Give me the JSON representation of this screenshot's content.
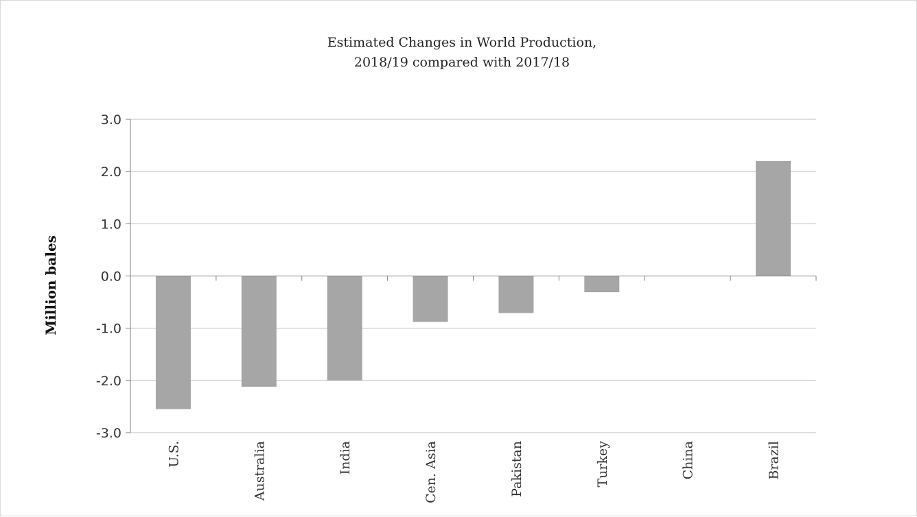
{
  "chart_data": {
    "type": "bar",
    "title_line1": "Estimated Changes in World Production,",
    "title_line2": "2018/19 compared with 2017/18",
    "xlabel": "",
    "ylabel": "Million bales",
    "categories": [
      "U.S.",
      "Australia",
      "India",
      "Cen. Asia",
      "Pakistan",
      "Turkey",
      "China",
      "Brazil"
    ],
    "values": [
      -2.55,
      -2.12,
      -2.0,
      -0.88,
      -0.71,
      -0.31,
      0.0,
      2.2
    ],
    "ylim": [
      -3.0,
      3.0
    ],
    "yticks": [
      3.0,
      2.0,
      1.0,
      0.0,
      -1.0,
      -2.0,
      -3.0
    ],
    "ytick_labels": [
      "3.0",
      "2.0",
      "1.0",
      "0.0",
      "-1.0",
      "-2.0",
      "-3.0"
    ],
    "grid": true,
    "legend": "none",
    "bar_color": "#a6a6a7",
    "grid_color": "#bfbfbf"
  }
}
